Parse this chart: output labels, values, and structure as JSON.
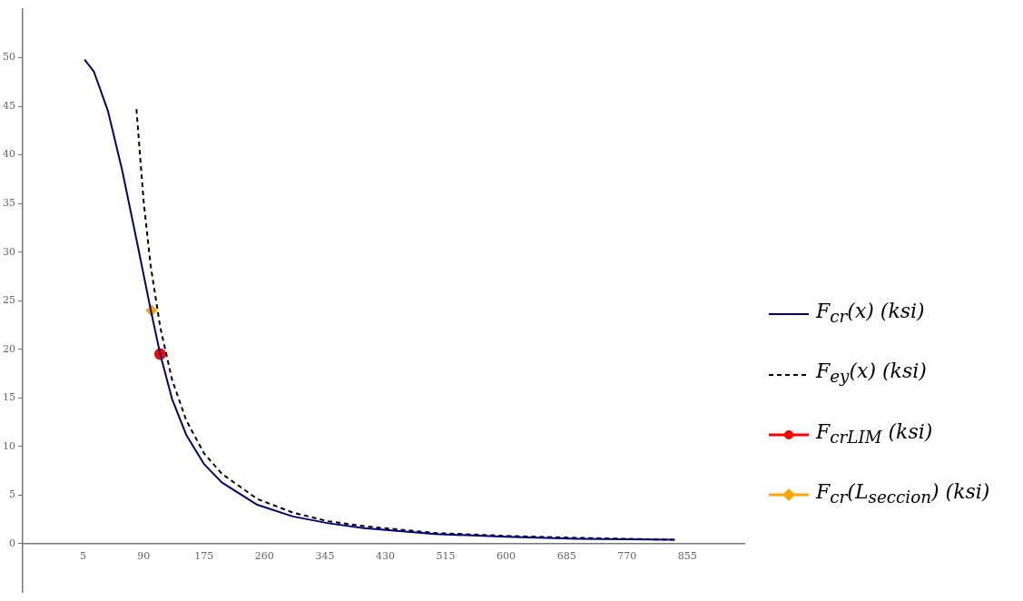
{
  "chart_data": {
    "type": "line",
    "xlim": [
      -80,
      935
    ],
    "ylim": [
      -5,
      55
    ],
    "xticks": [
      5,
      90,
      175,
      260,
      345,
      430,
      515,
      600,
      685,
      770,
      855
    ],
    "yticks": [
      0,
      5,
      10,
      15,
      20,
      25,
      30,
      35,
      40,
      45,
      50
    ],
    "grid": false,
    "legend": "right",
    "series": [
      {
        "name": "F$_{cr}$(x)  (ksi)",
        "color": "#000080",
        "line_style": "solid",
        "marker": "none",
        "x": [
          7,
          20,
          40,
          60,
          80,
          100,
          113.4,
          130,
          150,
          175,
          200,
          250,
          300,
          350,
          400,
          500,
          600,
          700,
          837
        ],
        "values": [
          49.8,
          48.6,
          44.5,
          38.4,
          31.3,
          24.1,
          19.5,
          14.9,
          11.2,
          8.2,
          6.3,
          4.0,
          2.8,
          2.1,
          1.6,
          1.0,
          0.7,
          0.5,
          0.4
        ]
      },
      {
        "name": "F$_{ey}$(x)  (ksi)",
        "color": "#000000",
        "line_style": "dashed",
        "marker": "none",
        "x": [
          80,
          90,
          100,
          113.4,
          130,
          150,
          175,
          200,
          250,
          300,
          350,
          400,
          500,
          600,
          700,
          837
        ],
        "values": [
          44.7,
          35.3,
          28.6,
          22.3,
          16.9,
          12.7,
          9.3,
          7.2,
          4.6,
          3.2,
          2.3,
          1.8,
          1.1,
          0.8,
          0.6,
          0.4
        ]
      },
      {
        "name": "F$_{crLIM}$  (ksi)",
        "type": "scatter",
        "color": "#ff0000",
        "marker": "circle",
        "x": [
          113.4
        ],
        "values": [
          19.5
        ]
      },
      {
        "name": "F$_{cr}$(L$_{seccion}$)  (ksi)",
        "type": "scatter",
        "color": "#ffa500",
        "marker": "diamond",
        "x": [
          101
        ],
        "values": [
          24.0
        ]
      }
    ]
  }
}
